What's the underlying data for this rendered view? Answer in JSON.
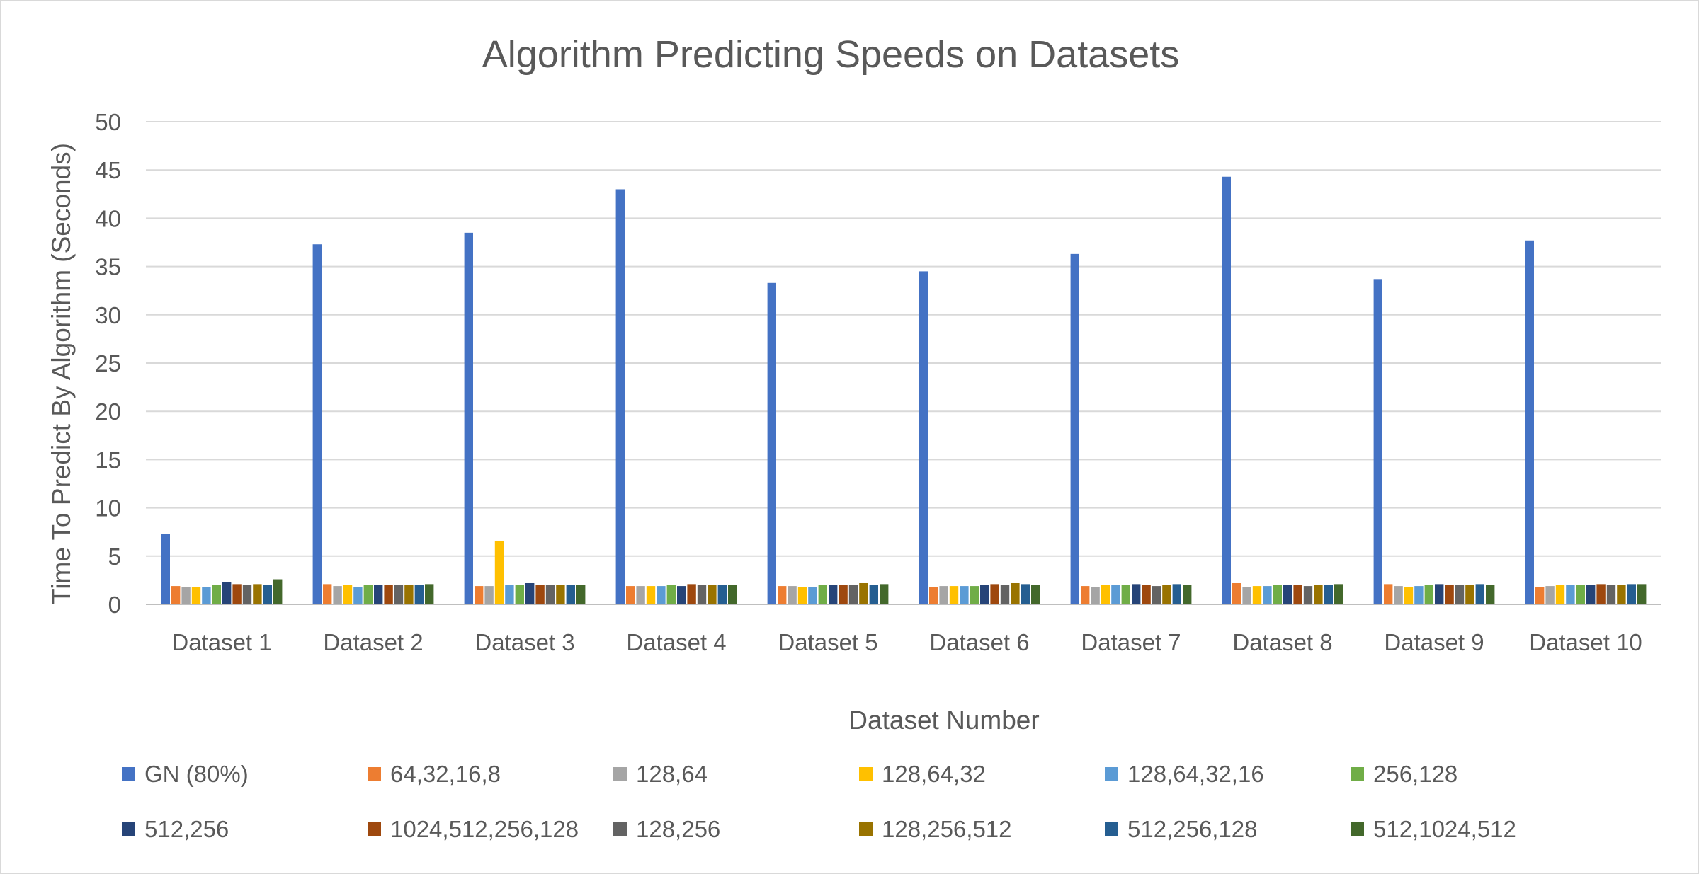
{
  "chart_data": {
    "type": "bar",
    "title": "Algorithm Predicting Speeds on Datasets",
    "xlabel": "Dataset Number",
    "ylabel": "Time To Predict By Algorithm (Seconds)",
    "ylim": [
      0,
      50
    ],
    "yticks": [
      "0",
      "5",
      "10",
      "15",
      "20",
      "25",
      "30",
      "35",
      "40",
      "45",
      "50"
    ],
    "grid": true,
    "legend_position": "bottom",
    "categories": [
      "Dataset 1",
      "Dataset 2",
      "Dataset 3",
      "Dataset 4",
      "Dataset 5",
      "Dataset 6",
      "Dataset 7",
      "Dataset 8",
      "Dataset 9",
      "Dataset 10"
    ],
    "series": [
      {
        "name": "GN (80%)",
        "color": "#4472C4",
        "values": [
          7.3,
          37.3,
          38.5,
          43.0,
          33.3,
          34.5,
          36.3,
          44.3,
          33.7,
          37.7
        ]
      },
      {
        "name": "64,32,16,8",
        "color": "#ED7D31",
        "values": [
          1.9,
          2.1,
          1.9,
          1.9,
          1.9,
          1.8,
          1.9,
          2.2,
          2.1,
          1.8
        ]
      },
      {
        "name": "128,64",
        "color": "#A5A5A5",
        "values": [
          1.8,
          1.9,
          1.9,
          1.9,
          1.9,
          1.9,
          1.8,
          1.8,
          1.9,
          1.9
        ]
      },
      {
        "name": "128,64,32",
        "color": "#FFC000",
        "values": [
          1.8,
          2.0,
          6.6,
          1.9,
          1.8,
          1.9,
          2.0,
          1.9,
          1.8,
          2.0
        ]
      },
      {
        "name": "128,64,32,16",
        "color": "#5B9BD5",
        "values": [
          1.8,
          1.8,
          2.0,
          1.9,
          1.8,
          1.9,
          2.0,
          1.9,
          1.9,
          2.0
        ]
      },
      {
        "name": "256,128",
        "color": "#70AD47",
        "values": [
          2.0,
          2.0,
          2.0,
          2.0,
          2.0,
          1.9,
          2.0,
          2.0,
          2.0,
          2.0
        ]
      },
      {
        "name": "512,256",
        "color": "#264478",
        "values": [
          2.3,
          2.0,
          2.2,
          1.9,
          2.0,
          2.0,
          2.1,
          2.0,
          2.1,
          2.0
        ]
      },
      {
        "name": "1024,512,256,128",
        "color": "#9E480E",
        "values": [
          2.1,
          2.0,
          2.0,
          2.1,
          2.0,
          2.1,
          2.0,
          2.0,
          2.0,
          2.1
        ]
      },
      {
        "name": "128,256",
        "color": "#636363",
        "values": [
          2.0,
          2.0,
          2.0,
          2.0,
          2.0,
          2.0,
          1.9,
          1.9,
          2.0,
          2.0
        ]
      },
      {
        "name": "128,256,512",
        "color": "#997300",
        "values": [
          2.1,
          2.0,
          2.0,
          2.0,
          2.2,
          2.2,
          2.0,
          2.0,
          2.0,
          2.0
        ]
      },
      {
        "name": "512,256,128",
        "color": "#255E91",
        "values": [
          2.0,
          2.0,
          2.0,
          2.0,
          2.0,
          2.1,
          2.1,
          2.0,
          2.1,
          2.1
        ]
      },
      {
        "name": "512,1024,512",
        "color": "#43682B",
        "values": [
          2.6,
          2.1,
          2.0,
          2.0,
          2.1,
          2.0,
          2.0,
          2.1,
          2.0,
          2.1
        ]
      }
    ]
  }
}
